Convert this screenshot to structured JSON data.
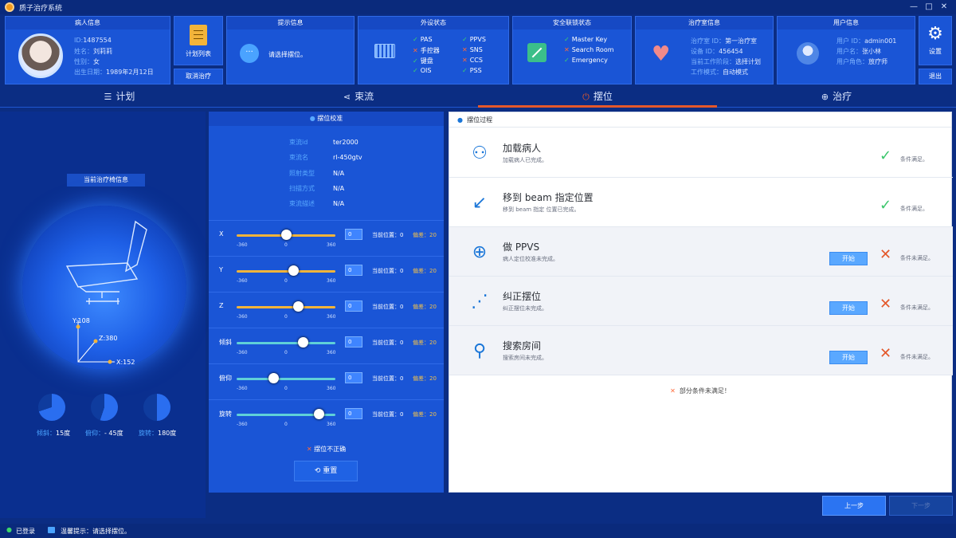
{
  "app": {
    "title": "质子治疗系统"
  },
  "window": {
    "minimize": "—",
    "maximize": "□",
    "close": "✕"
  },
  "patient": {
    "header": "病人信息",
    "id_label": "ID:",
    "id": "1487554",
    "name_label": "姓名：",
    "name": "刘莉莉",
    "sex_label": "性别：",
    "sex": "女",
    "dob_label": "出生日期：",
    "dob": "1989年2月12日"
  },
  "plan": {
    "list_label": "计划列表",
    "cancel_label": "取消治疗"
  },
  "prompt": {
    "header": "提示信息",
    "text": "请选择摆位。"
  },
  "peripheral": {
    "header": "外设状态",
    "items": [
      {
        "label": "PAS",
        "ok": "✓"
      },
      {
        "label": "手控器",
        "ok": "✕"
      },
      {
        "label": "键盘",
        "ok": "✓"
      },
      {
        "label": "OIS",
        "ok": "✓"
      },
      {
        "label": "PPVS",
        "ok": "✓"
      },
      {
        "label": "SNS",
        "ok": "✕"
      },
      {
        "label": "CCS",
        "ok": "✕"
      },
      {
        "label": "PSS",
        "ok": "✓"
      }
    ]
  },
  "safety": {
    "header": "安全联锁状态",
    "items": [
      {
        "label": "Master Key",
        "ok": "✓"
      },
      {
        "label": "Search Room",
        "ok": "✕"
      },
      {
        "label": "Emergency",
        "ok": "✓"
      }
    ]
  },
  "room": {
    "header": "治疗室信息",
    "room_id_label": "治疗室 ID：",
    "room_id": "第一治疗室",
    "device_id_label": "设备 ID：",
    "device_id": "456454",
    "stage_label": "当前工作阶段：",
    "stage": "选择计划",
    "mode_label": "工作模式：",
    "mode": "自动模式"
  },
  "user": {
    "header": "用户信息",
    "uid_label": "用户 ID：",
    "uid": "admin001",
    "uname_label": "用户名：",
    "uname": "张小林",
    "role_label": "用户角色：",
    "role": "放疗师"
  },
  "settings": {
    "label": "设置",
    "logout": "退出"
  },
  "tabs": [
    {
      "label": "计划",
      "icon": "☰"
    },
    {
      "label": "束流",
      "icon": "⋖"
    },
    {
      "label": "摆位",
      "icon": "⏻"
    },
    {
      "label": "治疗",
      "icon": "⊕"
    }
  ],
  "couch": {
    "title": "当前治疗椅信息",
    "y_label": "Y:108",
    "z_label": "Z:380",
    "x_label": "X:152",
    "tilt_label": "倾斜：",
    "tilt": "15度",
    "pitch_label": "俯仰：",
    "pitch": "- 45度",
    "rot_label": "旋转：",
    "rot": "180度",
    "tilt_value": 15,
    "pitch_value": -45,
    "rot_value": 180
  },
  "calib": {
    "header": "摆位校准",
    "beam_id_label": "束流id",
    "beam_id": "ter2000",
    "beam_name_label": "束流名",
    "beam_name": "rl-450gtv",
    "irr_label": "照射类型",
    "irr": "N/A",
    "scan_label": "扫描方式",
    "scan": "N/A",
    "desc_label": "束流描述",
    "desc": "N/A",
    "sliders": [
      {
        "name": "X",
        "value": 0,
        "pos": 50,
        "track": "#f2b43a",
        "cur": "当前位置：0",
        "dev_label": "偏差：",
        "dev": "20"
      },
      {
        "name": "Y",
        "value": 0,
        "pos": 57,
        "track": "#f2b43a",
        "cur": "当前位置：0",
        "dev_label": "偏差：",
        "dev": "20"
      },
      {
        "name": "Z",
        "value": 0,
        "pos": 62,
        "track": "#f2b43a",
        "cur": "当前位置：0",
        "dev_label": "偏差：",
        "dev": "20"
      },
      {
        "name": "倾斜",
        "value": 0,
        "pos": 67,
        "track": "#5fd0d8",
        "cur": "当前位置：0",
        "dev_label": "偏差：",
        "dev": "20"
      },
      {
        "name": "俯仰",
        "value": 0,
        "pos": 37,
        "track": "#5fd0d8",
        "cur": "当前位置：0",
        "dev_label": "偏差：",
        "dev": "20"
      },
      {
        "name": "旋转",
        "value": 0,
        "pos": 83,
        "track": "#5fd0d8",
        "cur": "当前位置：0",
        "dev_label": "偏差：",
        "dev": "20"
      }
    ],
    "tick_min": "-360",
    "tick_mid": "0",
    "tick_max": "360",
    "error": "摆位不正确",
    "reset": "重置"
  },
  "process": {
    "header": "摆位过程",
    "steps": [
      {
        "title": "加载病人",
        "desc": "加载病人已完成。",
        "status": "条件满足。",
        "done": true,
        "icon": "⚇"
      },
      {
        "title": "移到 beam 指定位置",
        "desc": "移到 beam 指定 位置已完成。",
        "status": "条件满足。",
        "done": true,
        "icon": "↙"
      },
      {
        "title": "做 PPVS",
        "desc": "病人定位校准未完成。",
        "status": "条件未满足。",
        "done": false,
        "icon": "⊕",
        "btn": "开始"
      },
      {
        "title": "纠正摆位",
        "desc": "纠正摆位未完成。",
        "status": "条件未满足。",
        "done": false,
        "icon": "⋰",
        "btn": "开始"
      },
      {
        "title": "搜索房间",
        "desc": "搜索房间未完成。",
        "status": "条件未满足。",
        "done": false,
        "icon": "⚲",
        "btn": "开始"
      }
    ],
    "summary": "部分条件未满足！"
  },
  "nav": {
    "prev": "上一步",
    "next": "下一步"
  },
  "status": {
    "login": "已登录",
    "hint": "温馨提示：请选择摆位。"
  }
}
